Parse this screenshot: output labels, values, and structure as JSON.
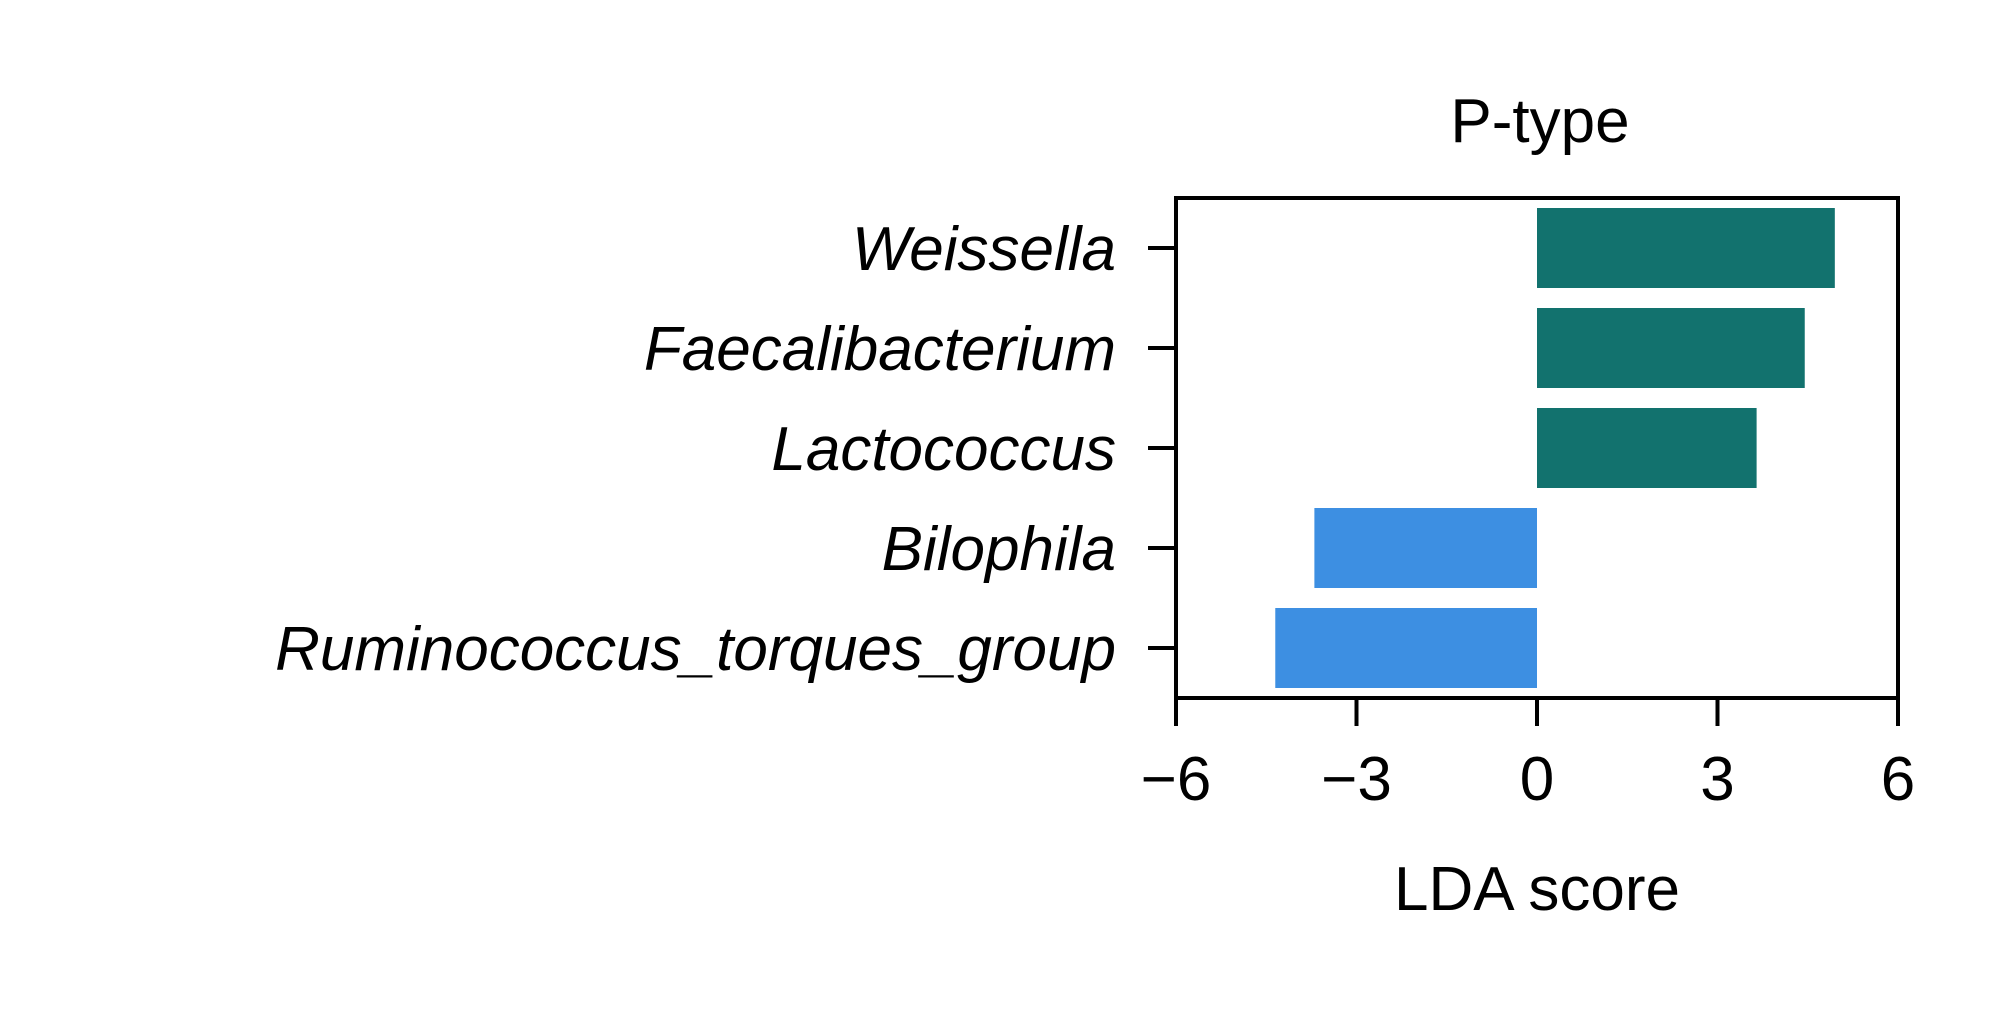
{
  "chart_data": {
    "type": "bar",
    "orientation": "horizontal",
    "title": "P-type",
    "xlabel": "LDA score",
    "ylabel": "",
    "categories": [
      "Weissella",
      "Faecalibacterium",
      "Lactococcus",
      "Bilophila",
      "Ruminococcus_torques_group"
    ],
    "values": [
      4.95,
      4.45,
      3.65,
      -3.7,
      -4.35
    ],
    "xlim": [
      -6,
      6
    ],
    "xticks": [
      -6,
      -3,
      0,
      3,
      6
    ],
    "xtick_labels": [
      "−6",
      "−3",
      "0",
      "3",
      "6"
    ],
    "grid": false,
    "legend": "none",
    "colors": {
      "positive": "#12726E",
      "negative": "#3D8FE2"
    }
  }
}
